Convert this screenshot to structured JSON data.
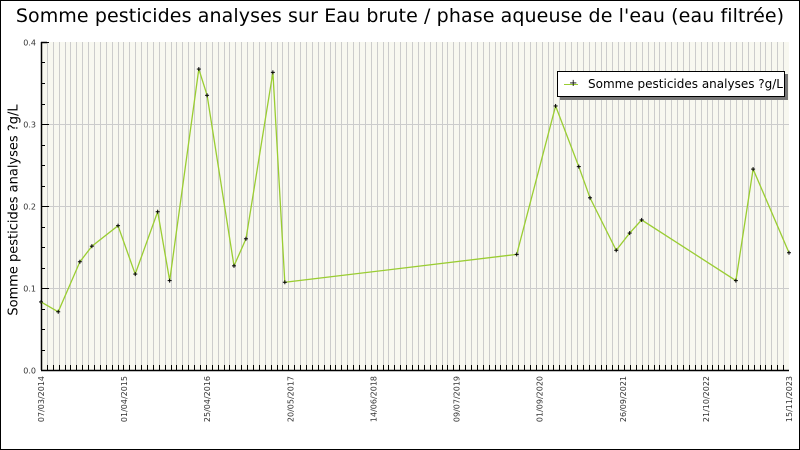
{
  "chart_data": {
    "type": "line",
    "title": "Somme pesticides analyses sur Eau brute / phase aqueuse de l'eau (eau filtrée)",
    "xlabel": "",
    "ylabel": "Somme pesticides analyses ?g/L",
    "ylim": [
      0.0,
      0.4
    ],
    "y_ticks": [
      "0.0",
      "0.1",
      "0.2",
      "0.3",
      "0.4"
    ],
    "x_tick_labels": [
      "07/03/2014",
      "01/04/2015",
      "25/04/2016",
      "20/05/2017",
      "14/06/2018",
      "09/07/2019",
      "01/09/2020",
      "26/09/2021",
      "21/10/2022",
      "15/11/2023"
    ],
    "grid": true,
    "legend_position": "top-right",
    "series": [
      {
        "name": "Somme pesticides analyses ?g/L",
        "color": "#9acd32",
        "marker": "+",
        "points": [
          {
            "x_frac": 0.0,
            "y": 0.083
          },
          {
            "x_frac": 0.023,
            "y": 0.071
          },
          {
            "x_frac": 0.052,
            "y": 0.132
          },
          {
            "x_frac": 0.068,
            "y": 0.151
          },
          {
            "x_frac": 0.103,
            "y": 0.176
          },
          {
            "x_frac": 0.126,
            "y": 0.117
          },
          {
            "x_frac": 0.156,
            "y": 0.193
          },
          {
            "x_frac": 0.172,
            "y": 0.109
          },
          {
            "x_frac": 0.211,
            "y": 0.367
          },
          {
            "x_frac": 0.222,
            "y": 0.335
          },
          {
            "x_frac": 0.258,
            "y": 0.127
          },
          {
            "x_frac": 0.274,
            "y": 0.16
          },
          {
            "x_frac": 0.31,
            "y": 0.363
          },
          {
            "x_frac": 0.326,
            "y": 0.107
          },
          {
            "x_frac": 0.636,
            "y": 0.141
          },
          {
            "x_frac": 0.688,
            "y": 0.322
          },
          {
            "x_frac": 0.719,
            "y": 0.248
          },
          {
            "x_frac": 0.734,
            "y": 0.21
          },
          {
            "x_frac": 0.769,
            "y": 0.146
          },
          {
            "x_frac": 0.787,
            "y": 0.167
          },
          {
            "x_frac": 0.803,
            "y": 0.183
          },
          {
            "x_frac": 0.929,
            "y": 0.109
          },
          {
            "x_frac": 0.952,
            "y": 0.245
          },
          {
            "x_frac": 1.0,
            "y": 0.143
          }
        ]
      }
    ]
  },
  "colors": {
    "plot_bg": "#f8f8f0",
    "grid": "#cccccc",
    "line": "#9acd32"
  }
}
